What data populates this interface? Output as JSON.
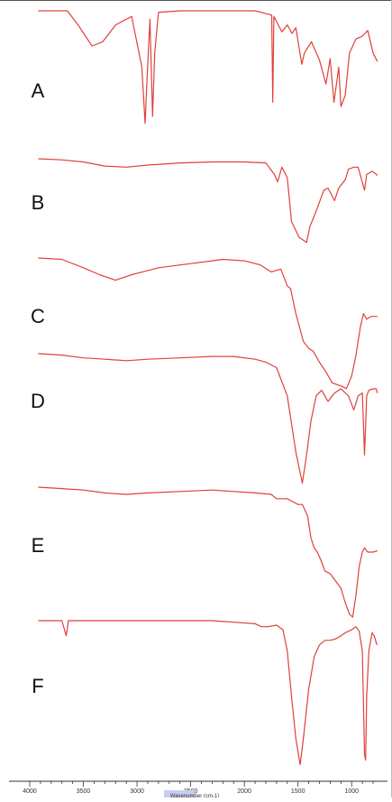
{
  "chart_data": {
    "type": "line",
    "title": "",
    "xlabel": "Wavenumber (cm-1)",
    "ylabel": "",
    "xlim": [
      4000,
      750
    ],
    "x_reversed": true,
    "x_ticks": [
      4000,
      3500,
      3000,
      2500,
      2000,
      1500,
      1000
    ],
    "grid": false,
    "colors": {
      "line": "#e0403a",
      "axis": "#333333",
      "label": "#111111"
    },
    "series": [
      {
        "name": "A",
        "points": [
          [
            3920,
            100
          ],
          [
            3650,
            100
          ],
          [
            3550,
            90
          ],
          [
            3420,
            75
          ],
          [
            3320,
            78
          ],
          [
            3200,
            90
          ],
          [
            3050,
            96
          ],
          [
            2955,
            60
          ],
          [
            2925,
            20
          ],
          [
            2905,
            55
          ],
          [
            2880,
            94
          ],
          [
            2855,
            25
          ],
          [
            2835,
            70
          ],
          [
            2800,
            99
          ],
          [
            2600,
            100
          ],
          [
            2000,
            100
          ],
          [
            1900,
            100
          ],
          [
            1745,
            97
          ],
          [
            1735,
            35
          ],
          [
            1725,
            96
          ],
          [
            1650,
            85
          ],
          [
            1600,
            90
          ],
          [
            1555,
            84
          ],
          [
            1520,
            88
          ],
          [
            1465,
            62
          ],
          [
            1440,
            70
          ],
          [
            1375,
            78
          ],
          [
            1300,
            65
          ],
          [
            1240,
            48
          ],
          [
            1200,
            66
          ],
          [
            1165,
            35
          ],
          [
            1120,
            60
          ],
          [
            1100,
            32
          ],
          [
            1060,
            40
          ],
          [
            1020,
            70
          ],
          [
            960,
            80
          ],
          [
            900,
            82
          ],
          [
            850,
            86
          ],
          [
            800,
            70
          ],
          [
            760,
            64
          ]
        ]
      },
      {
        "name": "B",
        "points": [
          [
            3920,
            100
          ],
          [
            3700,
            99
          ],
          [
            3500,
            97
          ],
          [
            3300,
            93
          ],
          [
            3100,
            92
          ],
          [
            2900,
            94
          ],
          [
            2600,
            96
          ],
          [
            2300,
            97
          ],
          [
            2000,
            97
          ],
          [
            1800,
            96
          ],
          [
            1720,
            85
          ],
          [
            1690,
            78
          ],
          [
            1650,
            92
          ],
          [
            1600,
            82
          ],
          [
            1560,
            40
          ],
          [
            1490,
            25
          ],
          [
            1420,
            20
          ],
          [
            1390,
            35
          ],
          [
            1330,
            50
          ],
          [
            1260,
            70
          ],
          [
            1220,
            72
          ],
          [
            1160,
            60
          ],
          [
            1120,
            72
          ],
          [
            1060,
            80
          ],
          [
            1030,
            90
          ],
          [
            980,
            92
          ],
          [
            940,
            92
          ],
          [
            880,
            70
          ],
          [
            860,
            85
          ],
          [
            810,
            88
          ],
          [
            780,
            86
          ],
          [
            760,
            84
          ]
        ]
      },
      {
        "name": "C",
        "points": [
          [
            3920,
            100
          ],
          [
            3700,
            99
          ],
          [
            3500,
            93
          ],
          [
            3350,
            88
          ],
          [
            3200,
            84
          ],
          [
            3050,
            88
          ],
          [
            2950,
            90
          ],
          [
            2800,
            93
          ],
          [
            2500,
            96
          ],
          [
            2300,
            98
          ],
          [
            2200,
            99
          ],
          [
            2000,
            98
          ],
          [
            1850,
            95
          ],
          [
            1750,
            90
          ],
          [
            1660,
            92
          ],
          [
            1600,
            80
          ],
          [
            1570,
            78
          ],
          [
            1520,
            60
          ],
          [
            1450,
            40
          ],
          [
            1400,
            35
          ],
          [
            1360,
            33
          ],
          [
            1300,
            25
          ],
          [
            1240,
            18
          ],
          [
            1180,
            10
          ],
          [
            1100,
            8
          ],
          [
            1050,
            6
          ],
          [
            1000,
            15
          ],
          [
            960,
            30
          ],
          [
            920,
            50
          ],
          [
            890,
            60
          ],
          [
            860,
            56
          ],
          [
            820,
            58
          ],
          [
            780,
            58
          ],
          [
            760,
            58
          ]
        ]
      },
      {
        "name": "D",
        "points": [
          [
            3920,
            100
          ],
          [
            3700,
            99
          ],
          [
            3500,
            97
          ],
          [
            3300,
            96
          ],
          [
            3100,
            95
          ],
          [
            2900,
            96
          ],
          [
            2600,
            97
          ],
          [
            2300,
            98
          ],
          [
            2100,
            98
          ],
          [
            1900,
            96
          ],
          [
            1800,
            94
          ],
          [
            1700,
            90
          ],
          [
            1600,
            70
          ],
          [
            1520,
            30
          ],
          [
            1460,
            8
          ],
          [
            1420,
            28
          ],
          [
            1380,
            52
          ],
          [
            1330,
            70
          ],
          [
            1280,
            74
          ],
          [
            1220,
            66
          ],
          [
            1160,
            72
          ],
          [
            1100,
            75
          ],
          [
            1030,
            70
          ],
          [
            980,
            60
          ],
          [
            940,
            70
          ],
          [
            900,
            72
          ],
          [
            880,
            28
          ],
          [
            860,
            70
          ],
          [
            840,
            74
          ],
          [
            800,
            75
          ],
          [
            770,
            75
          ],
          [
            760,
            72
          ]
        ]
      },
      {
        "name": "E",
        "points": [
          [
            3920,
            100
          ],
          [
            3700,
            99
          ],
          [
            3500,
            98
          ],
          [
            3300,
            96
          ],
          [
            3100,
            95
          ],
          [
            2900,
            96
          ],
          [
            2600,
            97
          ],
          [
            2300,
            98
          ],
          [
            2100,
            97
          ],
          [
            1900,
            96
          ],
          [
            1750,
            95
          ],
          [
            1700,
            92
          ],
          [
            1600,
            92
          ],
          [
            1550,
            90
          ],
          [
            1500,
            88
          ],
          [
            1460,
            88
          ],
          [
            1410,
            80
          ],
          [
            1380,
            65
          ],
          [
            1350,
            58
          ],
          [
            1320,
            55
          ],
          [
            1290,
            50
          ],
          [
            1250,
            42
          ],
          [
            1200,
            40
          ],
          [
            1150,
            35
          ],
          [
            1100,
            30
          ],
          [
            1060,
            20
          ],
          [
            1020,
            12
          ],
          [
            990,
            10
          ],
          [
            960,
            25
          ],
          [
            930,
            45
          ],
          [
            900,
            55
          ],
          [
            880,
            58
          ],
          [
            850,
            55
          ],
          [
            800,
            55
          ],
          [
            760,
            56
          ]
        ]
      },
      {
        "name": "F",
        "points": [
          [
            3920,
            100
          ],
          [
            3800,
            100
          ],
          [
            3700,
            100
          ],
          [
            3660,
            90
          ],
          [
            3640,
            100
          ],
          [
            3500,
            100
          ],
          [
            3300,
            100
          ],
          [
            3100,
            100
          ],
          [
            2900,
            100
          ],
          [
            2700,
            100
          ],
          [
            2500,
            100
          ],
          [
            2300,
            100
          ],
          [
            2100,
            99
          ],
          [
            1900,
            98
          ],
          [
            1840,
            96
          ],
          [
            1780,
            96
          ],
          [
            1700,
            97
          ],
          [
            1640,
            94
          ],
          [
            1600,
            80
          ],
          [
            1560,
            50
          ],
          [
            1520,
            22
          ],
          [
            1480,
            5
          ],
          [
            1450,
            22
          ],
          [
            1400,
            55
          ],
          [
            1350,
            76
          ],
          [
            1300,
            84
          ],
          [
            1250,
            87
          ],
          [
            1200,
            87
          ],
          [
            1150,
            88
          ],
          [
            1100,
            90
          ],
          [
            1060,
            92
          ],
          [
            1000,
            94
          ],
          [
            960,
            96
          ],
          [
            930,
            93
          ],
          [
            900,
            80
          ],
          [
            880,
            12
          ],
          [
            870,
            8
          ],
          [
            860,
            50
          ],
          [
            840,
            80
          ],
          [
            810,
            92
          ],
          [
            790,
            90
          ],
          [
            780,
            88
          ],
          [
            770,
            85
          ],
          [
            760,
            84
          ]
        ]
      }
    ]
  }
}
